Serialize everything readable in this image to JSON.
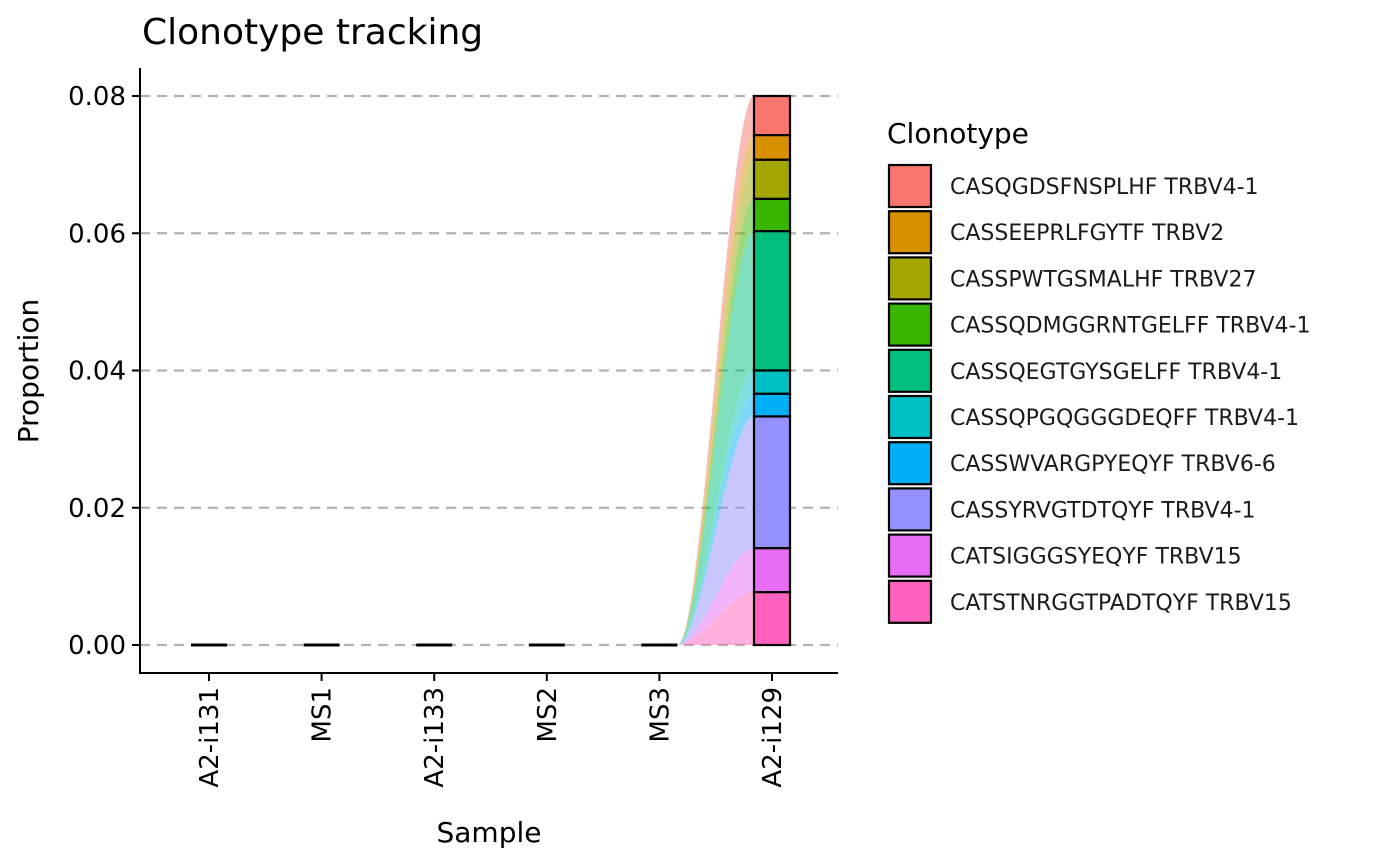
{
  "chart_data": {
    "type": "bar",
    "title": "Clonotype tracking",
    "xlabel": "Sample",
    "ylabel": "Proportion",
    "categories": [
      "A2-i131",
      "MS1",
      "A2-i133",
      "MS2",
      "MS3",
      "A2-i129"
    ],
    "ylim": [
      -0.004,
      0.084
    ],
    "yticks": [
      0.0,
      0.02,
      0.04,
      0.06,
      0.08
    ],
    "ytick_labels": [
      "0.00",
      "0.02",
      "0.04",
      "0.06",
      "0.08"
    ],
    "grid": "horizontal-dashed",
    "stacked": true,
    "alluvial_flows": true,
    "legend_title": "Clonotype",
    "legend_position": "right",
    "series": [
      {
        "name": "CASQGDSFNSPLHF TRBV4-1",
        "color": "#F8766D",
        "values": [
          0,
          0,
          0,
          0,
          0,
          0.0057
        ]
      },
      {
        "name": "CASSEEPRLFGYTF TRBV2",
        "color": "#D89000",
        "values": [
          0,
          0,
          0,
          0,
          0,
          0.0036
        ]
      },
      {
        "name": "CASSPWTGSMALHF TRBV27",
        "color": "#A3A500",
        "values": [
          0,
          0,
          0,
          0,
          0,
          0.0057
        ]
      },
      {
        "name": "CASSQDMGGRNTGELFF TRBV4-1",
        "color": "#39B600",
        "values": [
          0,
          0,
          0,
          0,
          0,
          0.0047
        ]
      },
      {
        "name": "CASSQEGTGYSGELFF TRBV4-1",
        "color": "#00BF7D",
        "values": [
          0,
          0,
          0,
          0,
          0,
          0.0203
        ]
      },
      {
        "name": "CASSQPGQGGGDEQFF TRBV4-1",
        "color": "#00BFC4",
        "values": [
          0,
          0,
          0,
          0,
          0,
          0.0034
        ]
      },
      {
        "name": "CASSWVARGPYEQYF TRBV6-6",
        "color": "#00B0F6",
        "values": [
          0,
          0,
          0,
          0,
          0,
          0.0033
        ]
      },
      {
        "name": "CASSYRVGTDTQYF TRBV4-1",
        "color": "#9590FF",
        "values": [
          0,
          0,
          0,
          0,
          0,
          0.0192
        ]
      },
      {
        "name": "CATSIGGGSYEQYF TRBV15",
        "color": "#E76BF3",
        "values": [
          0,
          0,
          0,
          0,
          0,
          0.0064
        ]
      },
      {
        "name": "CATSTNRGGTPADTQYF TRBV15",
        "color": "#FF62BC",
        "values": [
          0,
          0,
          0,
          0,
          0,
          0.0077
        ]
      }
    ]
  }
}
